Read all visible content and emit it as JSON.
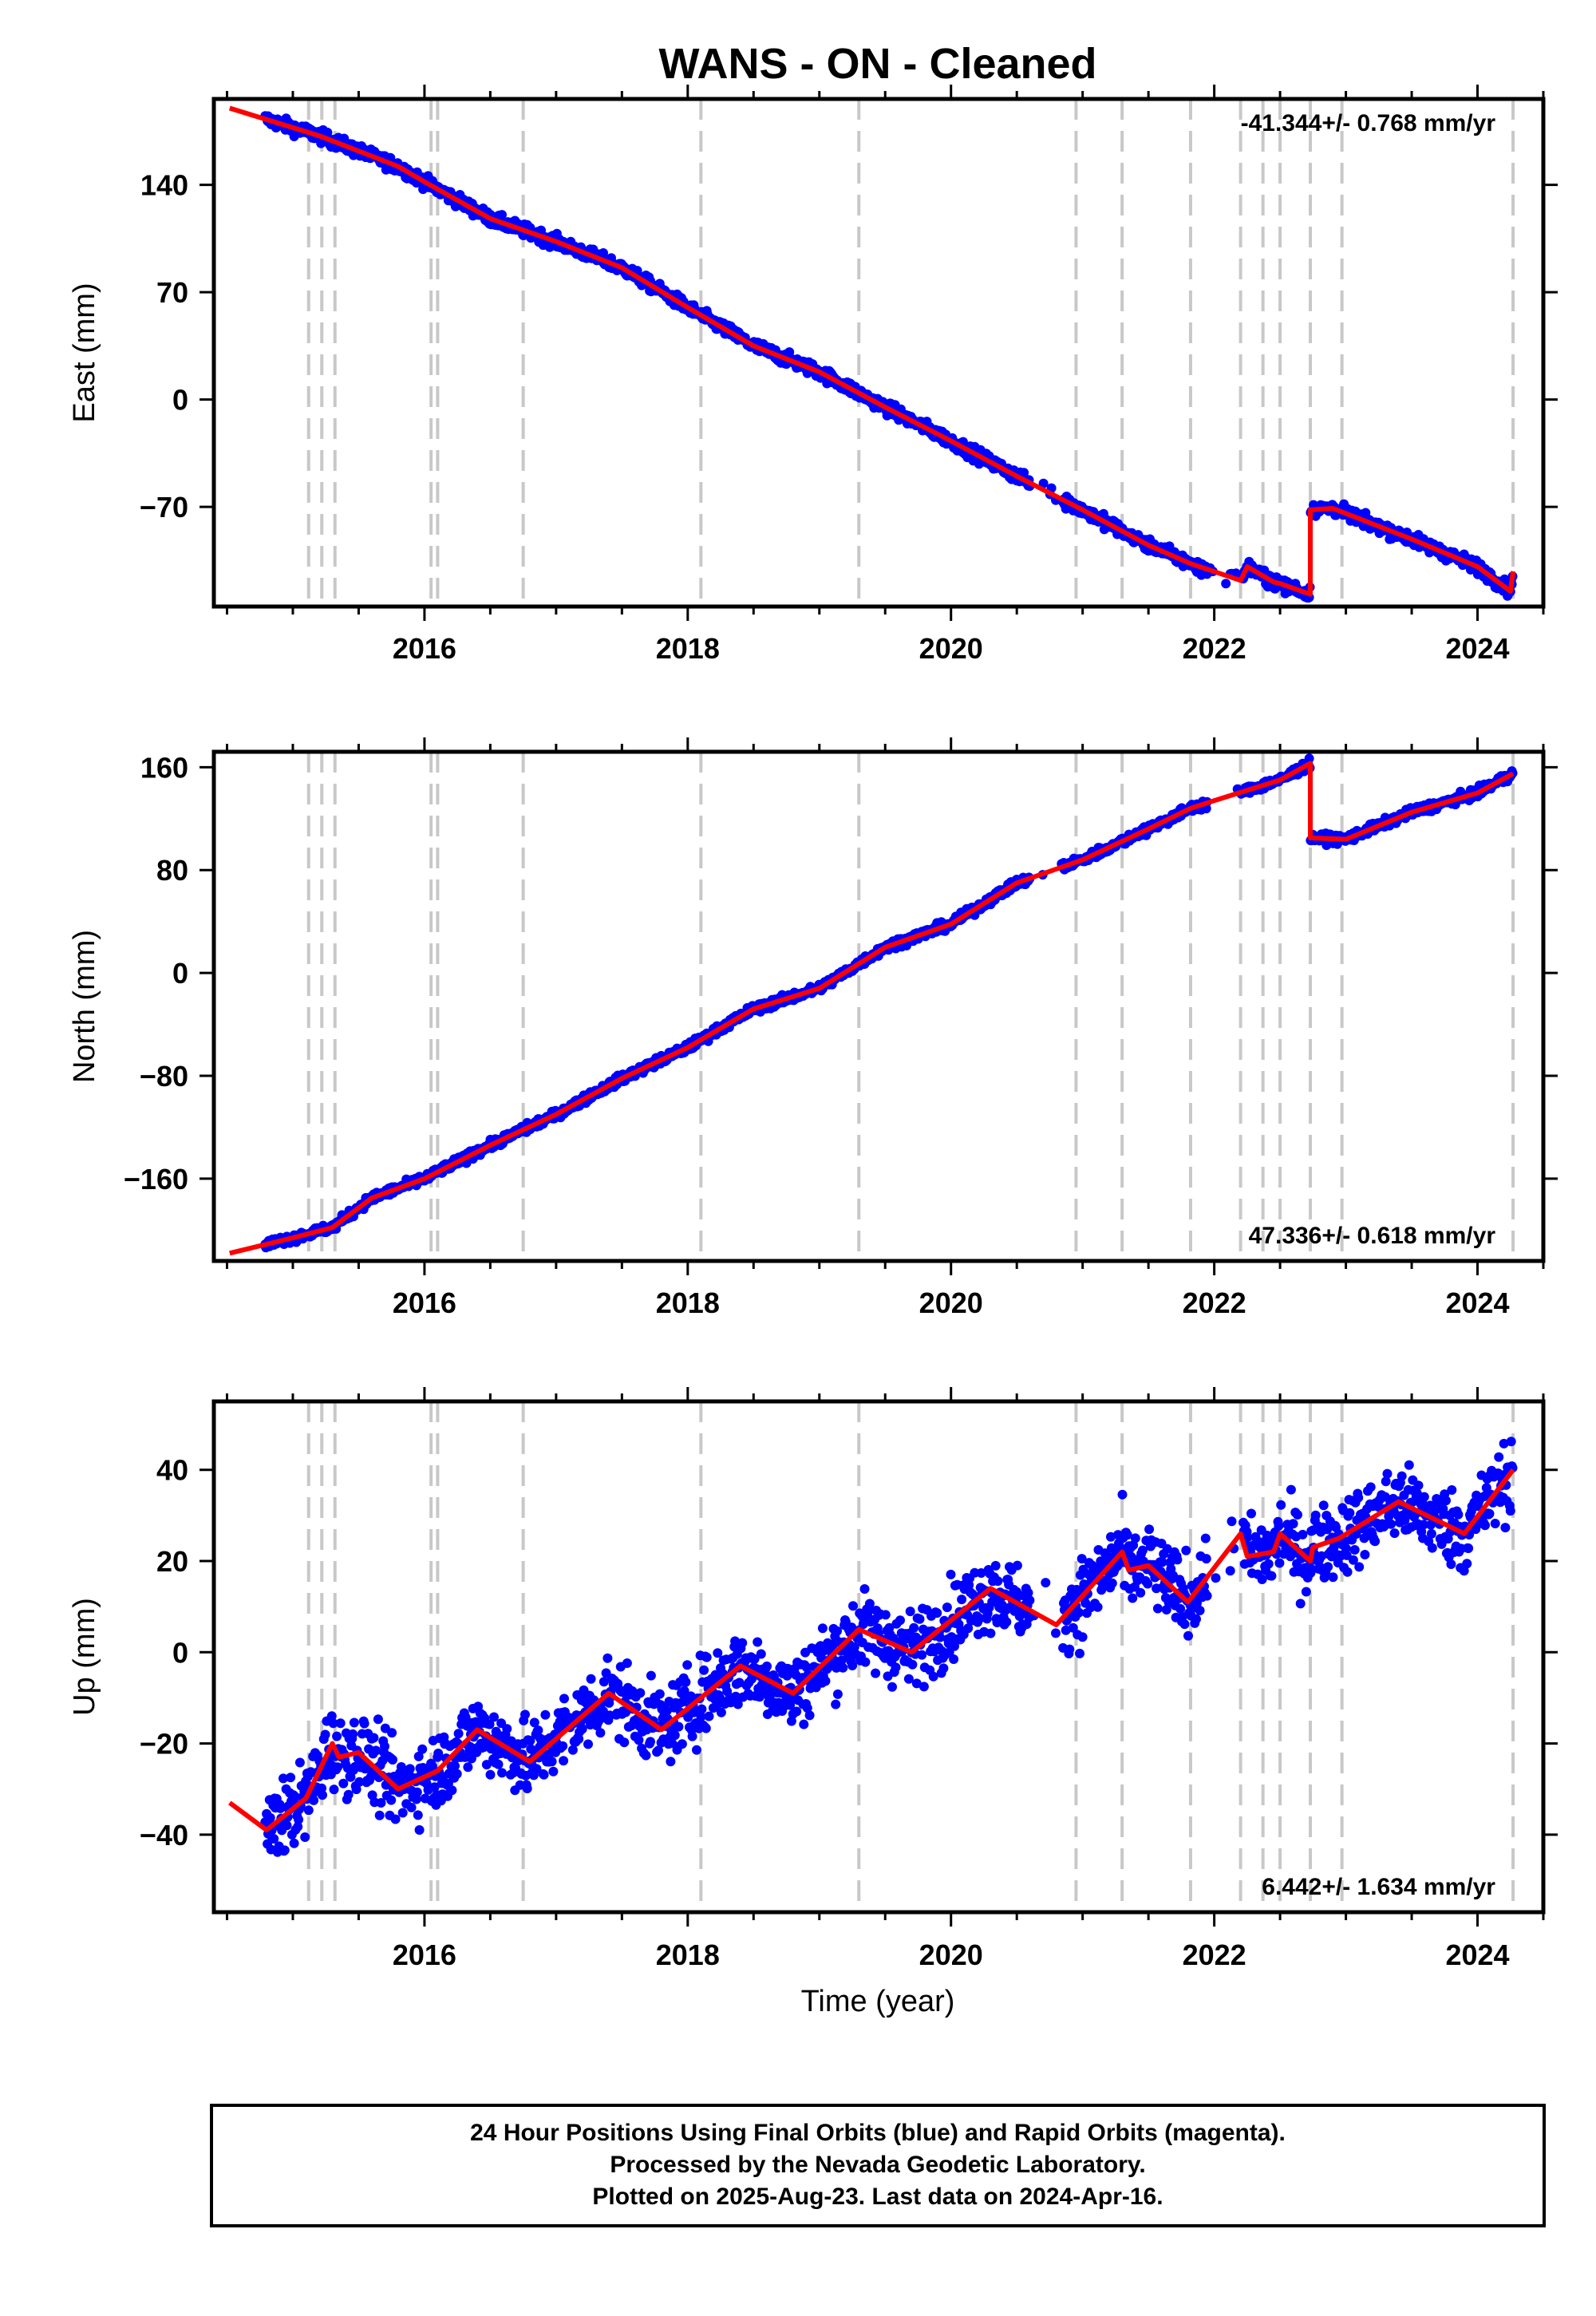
{
  "figure": {
    "title": "WANS  - ON - Cleaned",
    "x_label": "Time (year)",
    "footer_lines": [
      "24 Hour Positions Using Final Orbits (blue) and Rapid Orbits (magenta).",
      "Processed by the Nevada Geodetic Laboratory.",
      "Plotted on 2025-Aug-23. Last data on 2024-Apr-16."
    ]
  },
  "chart_data": [
    {
      "type": "scatter",
      "name": "east",
      "ylabel": "East (mm)",
      "rate_text": "-41.344+/- 0.768 mm/yr",
      "rate_position": "top-right",
      "xlim": [
        2014.4,
        2024.5
      ],
      "ylim": [
        -135,
        196
      ],
      "xticks": [
        2016,
        2018,
        2020,
        2022,
        2024
      ],
      "yticks": [
        -70,
        0,
        70,
        140
      ],
      "colors": {
        "data": "#0000ff",
        "model": "#ff0000",
        "steps": "#c8c8c8"
      },
      "model_points": [
        [
          2014.52,
          190
        ],
        [
          2015.2,
          172
        ],
        [
          2015.8,
          152
        ],
        [
          2016.0,
          142
        ],
        [
          2016.5,
          118
        ],
        [
          2017.0,
          103
        ],
        [
          2017.5,
          86
        ],
        [
          2018.0,
          60
        ],
        [
          2018.5,
          35
        ],
        [
          2019.0,
          18
        ],
        [
          2019.5,
          -5
        ],
        [
          2020.0,
          -27
        ],
        [
          2020.5,
          -50
        ],
        [
          2021.0,
          -72
        ],
        [
          2021.5,
          -95
        ],
        [
          2021.82,
          -107
        ],
        [
          2022.2,
          -118
        ],
        [
          2022.25,
          -109
        ],
        [
          2022.45,
          -119
        ],
        [
          2022.5,
          -120
        ],
        [
          2022.73,
          -127
        ],
        [
          2022.73,
          -72
        ],
        [
          2022.9,
          -71
        ],
        [
          2023.5,
          -91
        ],
        [
          2024.0,
          -109
        ],
        [
          2024.25,
          -125
        ],
        [
          2024.27,
          -112
        ]
      ],
      "scatter_gaps": [
        [
          2020.6,
          2020.85
        ],
        [
          2021.95,
          2022.22
        ]
      ],
      "scatter_noise_mm": 3
    },
    {
      "type": "scatter",
      "name": "north",
      "ylabel": "North (mm)",
      "rate_text": "47.336+/- 0.618 mm/yr",
      "rate_position": "bottom-right",
      "xlim": [
        2014.4,
        2024.5
      ],
      "ylim": [
        -224,
        172
      ],
      "xticks": [
        2016,
        2018,
        2020,
        2022,
        2024
      ],
      "yticks": [
        -160,
        -80,
        0,
        80,
        160
      ],
      "colors": {
        "data": "#0000ff",
        "model": "#ff0000",
        "steps": "#c8c8c8"
      },
      "model_points": [
        [
          2014.52,
          -218
        ],
        [
          2015.0,
          -206
        ],
        [
          2015.3,
          -198
        ],
        [
          2015.6,
          -175
        ],
        [
          2016.0,
          -160
        ],
        [
          2016.5,
          -134
        ],
        [
          2017.0,
          -110
        ],
        [
          2017.5,
          -82
        ],
        [
          2018.0,
          -58
        ],
        [
          2018.5,
          -28
        ],
        [
          2019.0,
          -12
        ],
        [
          2019.5,
          20
        ],
        [
          2020.0,
          38
        ],
        [
          2020.5,
          70
        ],
        [
          2021.0,
          88
        ],
        [
          2021.5,
          112
        ],
        [
          2021.82,
          128
        ],
        [
          2022.0,
          134
        ],
        [
          2022.5,
          150
        ],
        [
          2022.73,
          163
        ],
        [
          2022.73,
          105
        ],
        [
          2023.0,
          104
        ],
        [
          2023.5,
          125
        ],
        [
          2024.0,
          140
        ],
        [
          2024.27,
          155
        ]
      ],
      "scatter_gaps": [
        [
          2020.6,
          2020.85
        ],
        [
          2021.95,
          2022.22
        ]
      ],
      "scatter_noise_mm": 2.5
    },
    {
      "type": "scatter",
      "name": "up",
      "ylabel": "Up (mm)",
      "rate_text": "6.442+/- 1.634 mm/yr",
      "rate_position": "bottom-right",
      "xlim": [
        2014.4,
        2024.5
      ],
      "ylim": [
        -57,
        55
      ],
      "xticks": [
        2016,
        2018,
        2020,
        2022,
        2024
      ],
      "yticks": [
        -40,
        -20,
        0,
        20,
        40
      ],
      "colors": {
        "data": "#0000ff",
        "model": "#ff0000",
        "steps": "#c8c8c8"
      },
      "model_points": [
        [
          2014.52,
          -33
        ],
        [
          2014.8,
          -39
        ],
        [
          2015.1,
          -32
        ],
        [
          2015.2,
          -26
        ],
        [
          2015.3,
          -20
        ],
        [
          2015.35,
          -23
        ],
        [
          2015.5,
          -22
        ],
        [
          2015.8,
          -30
        ],
        [
          2016.1,
          -26
        ],
        [
          2016.4,
          -17
        ],
        [
          2016.8,
          -24
        ],
        [
          2017.4,
          -9
        ],
        [
          2017.8,
          -17
        ],
        [
          2018.4,
          -3
        ],
        [
          2018.8,
          -9
        ],
        [
          2019.3,
          5
        ],
        [
          2019.7,
          0
        ],
        [
          2020.3,
          14
        ],
        [
          2020.8,
          6
        ],
        [
          2021.3,
          22
        ],
        [
          2021.35,
          18
        ],
        [
          2021.5,
          19
        ],
        [
          2021.8,
          11
        ],
        [
          2022.2,
          26
        ],
        [
          2022.25,
          21
        ],
        [
          2022.45,
          22
        ],
        [
          2022.5,
          26
        ],
        [
          2022.73,
          20
        ],
        [
          2022.75,
          23
        ],
        [
          2022.95,
          25
        ],
        [
          2023.4,
          33
        ],
        [
          2023.9,
          26
        ],
        [
          2024.27,
          40
        ]
      ],
      "scatter_gaps": [
        [
          2020.6,
          2020.85
        ],
        [
          2021.95,
          2022.22
        ]
      ],
      "scatter_noise_mm": 6
    }
  ],
  "step_epochs": [
    2015.12,
    2015.22,
    2015.32,
    2016.05,
    2016.1,
    2016.75,
    2018.1,
    2019.3,
    2020.95,
    2021.3,
    2021.82,
    2022.2,
    2022.37,
    2022.5,
    2022.73,
    2022.97,
    2024.27
  ]
}
